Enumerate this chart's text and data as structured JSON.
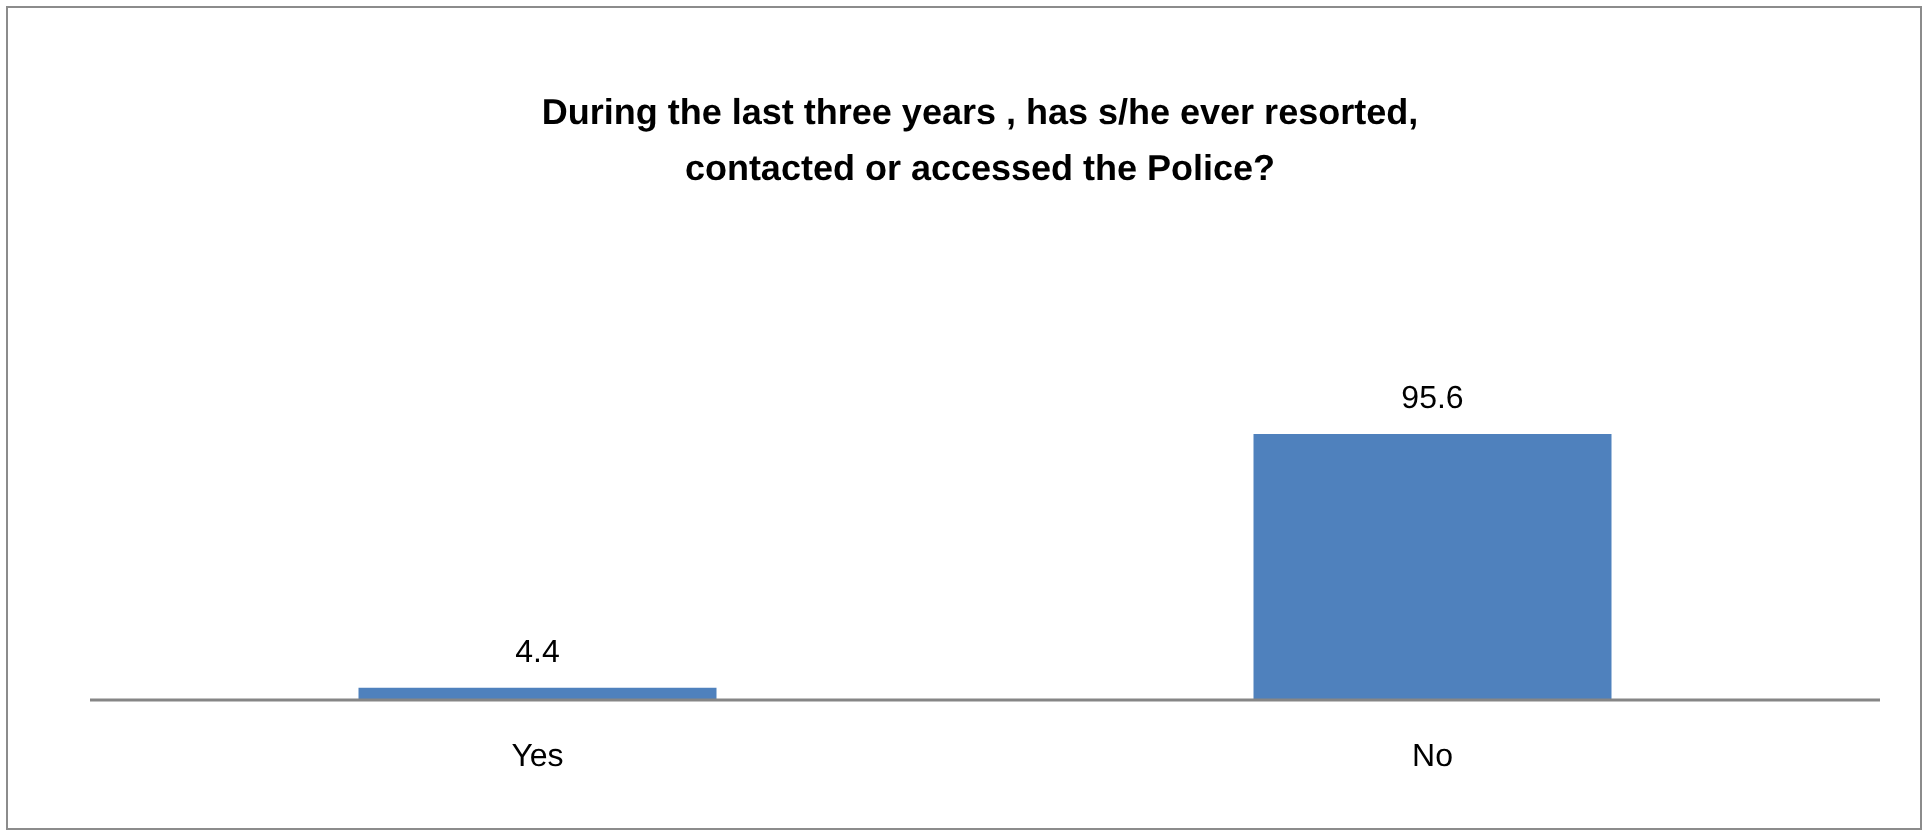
{
  "chart_data": {
    "type": "bar",
    "title": "During the last three years , has s/he ever  resorted,\ncontacted or accessed the Police?",
    "categories": [
      "Yes",
      "No"
    ],
    "values": [
      4.4,
      95.6
    ],
    "color": "#4f81bd",
    "data_labels": true
  }
}
